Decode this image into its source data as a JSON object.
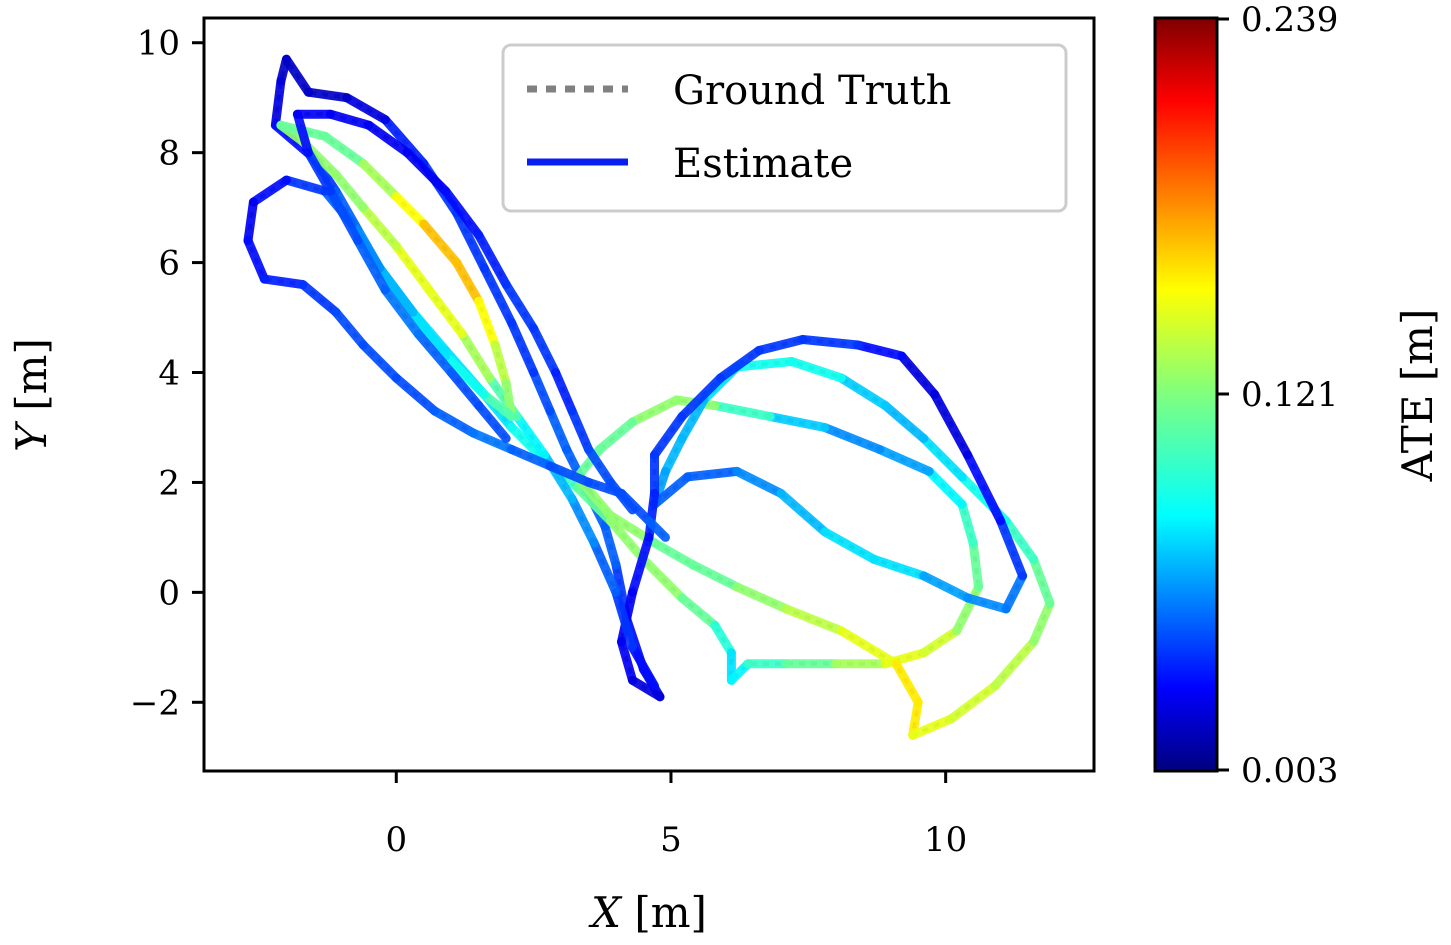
{
  "chart_data": {
    "type": "line",
    "title": "",
    "xlabel_var": "X",
    "xlabel_unit": "[m]",
    "ylabel_var": "Y",
    "ylabel_unit": "[m]",
    "xlim": [
      -3.5,
      12.7
    ],
    "ylim": [
      -3.25,
      10.45
    ],
    "xticks": [
      0,
      5,
      10
    ],
    "yticks": [
      -2,
      0,
      2,
      4,
      6,
      8,
      10
    ],
    "xtick_labels": [
      "0",
      "5",
      "10"
    ],
    "ytick_labels": [
      "−2",
      "0",
      "2",
      "4",
      "6",
      "8",
      "10"
    ],
    "grid": false,
    "legend_position": "top-right",
    "legend": [
      {
        "label": "Ground Truth",
        "style": "dotted",
        "color": "#808080"
      },
      {
        "label": "Estimate",
        "style": "solid",
        "color": "#0a1ef0"
      }
    ],
    "colorbar": {
      "label": "ATE [m]",
      "colormap": "jet",
      "min": 0.003,
      "mid": 0.121,
      "max": 0.239,
      "tick_labels": [
        "0.239",
        "0.121",
        "0.003"
      ]
    },
    "series": [
      {
        "points": [
          [
            4.8,
            -1.9,
            0.02
          ],
          [
            4.5,
            -1.4,
            0.03
          ],
          [
            4.2,
            -0.5,
            0.04
          ],
          [
            4.0,
            0.5,
            0.05
          ],
          [
            3.8,
            1.2,
            0.06
          ],
          [
            3.5,
            1.8,
            0.05
          ],
          [
            3.1,
            2.6,
            0.06
          ],
          [
            2.8,
            3.3,
            0.05
          ],
          [
            2.5,
            4.0,
            0.05
          ],
          [
            2.1,
            4.9,
            0.04
          ],
          [
            1.6,
            5.9,
            0.05
          ],
          [
            1.1,
            6.9,
            0.04
          ],
          [
            0.5,
            7.8,
            0.05
          ],
          [
            -0.2,
            8.6,
            0.03
          ],
          [
            -0.9,
            9.0,
            0.02
          ],
          [
            -1.6,
            9.1,
            0.02
          ],
          [
            -2.0,
            9.7,
            0.02
          ],
          [
            -2.1,
            9.3,
            0.02
          ],
          [
            -2.2,
            8.5,
            0.03
          ]
        ]
      },
      {
        "points": [
          [
            -2.2,
            8.5,
            0.03
          ],
          [
            -1.5,
            7.9,
            0.04
          ],
          [
            -1.1,
            7.3,
            0.05
          ],
          [
            -0.7,
            6.6,
            0.06
          ],
          [
            -0.3,
            5.9,
            0.07
          ],
          [
            0.3,
            5.1,
            0.08
          ],
          [
            0.9,
            4.4,
            0.09
          ],
          [
            1.6,
            3.6,
            0.08
          ],
          [
            2.1,
            3.0,
            0.09
          ],
          [
            2.7,
            2.4,
            0.1
          ],
          [
            3.3,
            1.9,
            0.11
          ],
          [
            3.9,
            1.3,
            0.12
          ],
          [
            4.5,
            0.6,
            0.13
          ],
          [
            5.2,
            -0.1,
            0.12
          ],
          [
            5.8,
            -0.6,
            0.11
          ],
          [
            6.1,
            -1.1,
            0.09
          ],
          [
            6.1,
            -1.6,
            0.08
          ],
          [
            6.4,
            -1.3,
            0.1
          ],
          [
            7.1,
            -1.3,
            0.11
          ],
          [
            8.0,
            -1.3,
            0.12
          ],
          [
            8.9,
            -1.3,
            0.14
          ],
          [
            9.6,
            -1.1,
            0.15
          ],
          [
            10.2,
            -0.7,
            0.13
          ],
          [
            10.6,
            0.1,
            0.12
          ],
          [
            10.5,
            0.9,
            0.11
          ],
          [
            10.3,
            1.6,
            0.1
          ]
        ]
      },
      {
        "points": [
          [
            10.3,
            1.6,
            0.1
          ],
          [
            9.7,
            2.2,
            0.08
          ],
          [
            8.8,
            2.6,
            0.06
          ],
          [
            7.8,
            3.0,
            0.07
          ],
          [
            6.8,
            3.2,
            0.09
          ],
          [
            5.8,
            3.4,
            0.12
          ],
          [
            5.1,
            3.5,
            0.13
          ],
          [
            4.3,
            3.1,
            0.12
          ],
          [
            3.7,
            2.6,
            0.11
          ],
          [
            3.3,
            2.1,
            0.12
          ],
          [
            3.9,
            1.4,
            0.13
          ],
          [
            4.7,
            0.9,
            0.12
          ],
          [
            5.4,
            0.5,
            0.11
          ],
          [
            6.2,
            0.1,
            0.12
          ],
          [
            7.1,
            -0.3,
            0.13
          ],
          [
            8.1,
            -0.7,
            0.14
          ],
          [
            9.1,
            -1.3,
            0.15
          ],
          [
            9.5,
            -2.0,
            0.16
          ],
          [
            9.4,
            -2.6,
            0.15
          ],
          [
            10.1,
            -2.3,
            0.14
          ],
          [
            10.9,
            -1.7,
            0.14
          ],
          [
            11.6,
            -0.9,
            0.13
          ],
          [
            11.9,
            -0.2,
            0.12
          ],
          [
            11.6,
            0.6,
            0.11
          ],
          [
            11.1,
            1.3,
            0.1
          ],
          [
            10.3,
            2.1,
            0.09
          ],
          [
            9.6,
            2.8,
            0.08
          ],
          [
            8.9,
            3.4,
            0.07
          ],
          [
            8.1,
            3.9,
            0.09
          ],
          [
            7.2,
            4.2,
            0.1
          ],
          [
            6.2,
            4.1,
            0.09
          ],
          [
            5.6,
            3.5,
            0.08
          ],
          [
            5.2,
            2.8,
            0.07
          ],
          [
            4.9,
            2.2,
            0.08
          ],
          [
            4.7,
            1.6,
            0.06
          ]
        ]
      },
      {
        "points": [
          [
            4.7,
            1.6,
            0.06
          ],
          [
            5.3,
            2.1,
            0.05
          ],
          [
            6.2,
            2.2,
            0.06
          ],
          [
            7.0,
            1.8,
            0.07
          ],
          [
            7.8,
            1.1,
            0.08
          ],
          [
            8.7,
            0.6,
            0.09
          ],
          [
            9.6,
            0.3,
            0.08
          ],
          [
            10.4,
            -0.1,
            0.06
          ],
          [
            11.1,
            -0.3,
            0.07
          ],
          [
            11.4,
            0.3,
            0.05
          ],
          [
            11.0,
            1.3,
            0.04
          ],
          [
            10.4,
            2.5,
            0.03
          ],
          [
            9.8,
            3.6,
            0.02
          ],
          [
            9.2,
            4.3,
            0.03
          ],
          [
            8.4,
            4.5,
            0.04
          ],
          [
            7.4,
            4.6,
            0.05
          ],
          [
            6.6,
            4.4,
            0.04
          ],
          [
            5.9,
            3.9,
            0.05
          ],
          [
            5.2,
            3.2,
            0.04
          ],
          [
            4.7,
            2.5,
            0.05
          ],
          [
            4.7,
            1.8,
            0.04
          ],
          [
            4.6,
            1.0,
            0.04
          ],
          [
            4.3,
            0.0,
            0.03
          ],
          [
            4.1,
            -0.9,
            0.03
          ],
          [
            4.3,
            -1.6,
            0.03
          ],
          [
            4.8,
            -1.9,
            0.02
          ]
        ]
      },
      {
        "points": [
          [
            4.7,
            -1.7,
            0.03
          ],
          [
            4.3,
            -1.0,
            0.04
          ],
          [
            4.0,
            0.0,
            0.05
          ],
          [
            3.6,
            0.9,
            0.06
          ],
          [
            3.2,
            1.7,
            0.07
          ],
          [
            2.7,
            2.5,
            0.08
          ],
          [
            2.2,
            3.2,
            0.1
          ],
          [
            1.7,
            3.9,
            0.12
          ],
          [
            1.2,
            4.7,
            0.14
          ],
          [
            0.6,
            5.5,
            0.15
          ],
          [
            0.0,
            6.3,
            0.14
          ],
          [
            -0.6,
            7.0,
            0.13
          ],
          [
            -1.1,
            7.6,
            0.12
          ],
          [
            -1.7,
            8.2,
            0.13
          ],
          [
            -2.1,
            8.5,
            0.12
          ],
          [
            -1.3,
            8.3,
            0.11
          ],
          [
            -0.6,
            7.8,
            0.12
          ],
          [
            0.0,
            7.2,
            0.14
          ],
          [
            0.5,
            6.7,
            0.16
          ],
          [
            1.1,
            6.0,
            0.17
          ],
          [
            1.5,
            5.3,
            0.16
          ],
          [
            1.8,
            4.5,
            0.14
          ],
          [
            2.0,
            3.8,
            0.13
          ],
          [
            2.1,
            3.2,
            0.12
          ]
        ]
      },
      {
        "points": [
          [
            2.1,
            3.2,
            0.12
          ],
          [
            1.6,
            3.6,
            0.1
          ],
          [
            0.9,
            4.3,
            0.09
          ],
          [
            0.3,
            5.1,
            0.08
          ],
          [
            -0.3,
            5.9,
            0.07
          ],
          [
            -0.8,
            6.7,
            0.06
          ],
          [
            -1.3,
            7.3,
            0.05
          ],
          [
            -2.0,
            7.5,
            0.04
          ],
          [
            -2.6,
            7.1,
            0.03
          ],
          [
            -2.7,
            6.4,
            0.03
          ],
          [
            -2.4,
            5.7,
            0.04
          ],
          [
            -1.7,
            5.6,
            0.04
          ],
          [
            -1.1,
            5.1,
            0.05
          ],
          [
            -0.6,
            4.5,
            0.05
          ],
          [
            0.0,
            3.9,
            0.05
          ],
          [
            0.7,
            3.3,
            0.05
          ],
          [
            1.4,
            2.9,
            0.06
          ],
          [
            2.1,
            2.6,
            0.06
          ],
          [
            2.8,
            2.3,
            0.05
          ],
          [
            3.5,
            2.0,
            0.05
          ],
          [
            4.1,
            1.8,
            0.05
          ],
          [
            4.6,
            1.3,
            0.05
          ],
          [
            4.9,
            1.0,
            0.06
          ]
        ]
      },
      {
        "points": [
          [
            2.0,
            2.8,
            0.05
          ],
          [
            1.5,
            3.4,
            0.05
          ],
          [
            1.0,
            4.0,
            0.05
          ],
          [
            0.4,
            4.7,
            0.06
          ],
          [
            -0.2,
            5.5,
            0.06
          ],
          [
            -0.7,
            6.4,
            0.05
          ],
          [
            -1.2,
            7.3,
            0.05
          ],
          [
            -1.6,
            8.0,
            0.04
          ],
          [
            -1.8,
            8.7,
            0.03
          ],
          [
            -1.2,
            8.7,
            0.03
          ],
          [
            -0.5,
            8.5,
            0.03
          ],
          [
            0.2,
            8.0,
            0.03
          ],
          [
            0.9,
            7.3,
            0.03
          ],
          [
            1.5,
            6.5,
            0.04
          ],
          [
            2.0,
            5.6,
            0.04
          ],
          [
            2.5,
            4.8,
            0.05
          ],
          [
            2.9,
            4.0,
            0.04
          ],
          [
            3.2,
            3.3,
            0.04
          ],
          [
            3.5,
            2.6,
            0.05
          ],
          [
            3.9,
            2.0,
            0.05
          ],
          [
            4.3,
            1.5,
            0.05
          ]
        ]
      }
    ]
  }
}
